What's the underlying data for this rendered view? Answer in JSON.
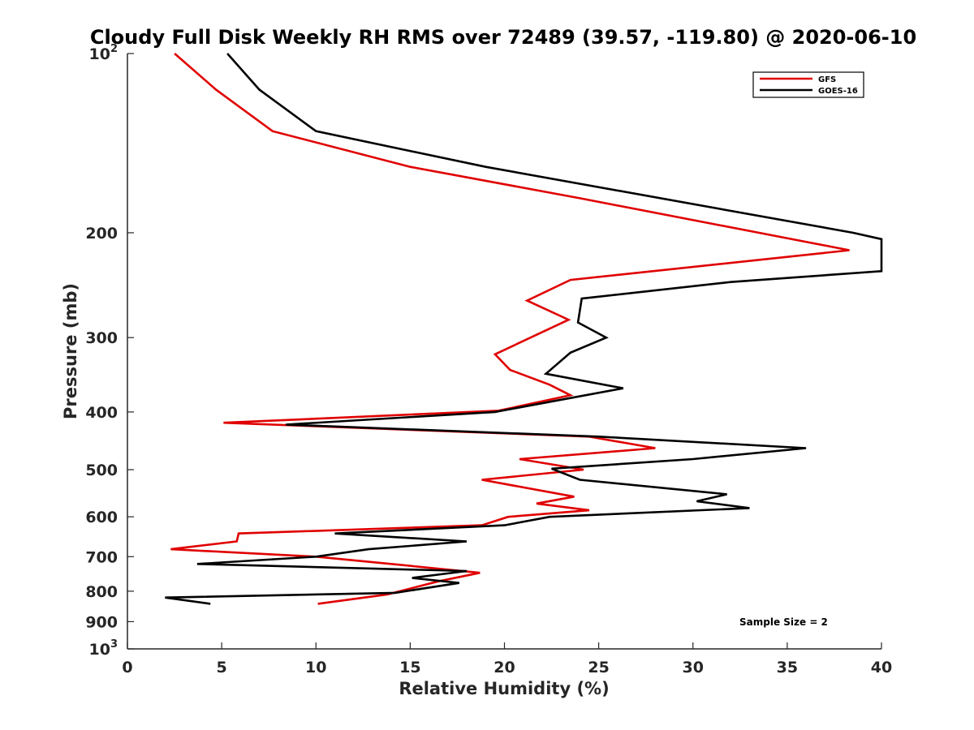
{
  "chart_data": {
    "type": "line",
    "title": "Cloudy Full Disk Weekly RH RMS over 72489 (39.57, -119.80) @ 2020-06-10",
    "xlabel": "Relative Humidity (%)",
    "ylabel": "Pressure (mb)",
    "xlim": [
      0,
      40
    ],
    "ylim": [
      100,
      1000
    ],
    "y_scale": "log",
    "y_reversed": true,
    "xticks": [
      0,
      5,
      10,
      15,
      20,
      25,
      30,
      35,
      40
    ],
    "xtick_labels": [
      "0",
      "5",
      "10",
      "15",
      "20",
      "25",
      "30",
      "35",
      "40"
    ],
    "yticks": [
      100,
      200,
      300,
      400,
      500,
      600,
      700,
      800,
      900,
      1000
    ],
    "ytick_labels": [
      "",
      "200",
      "300",
      "400",
      "500",
      "600",
      "700",
      "800",
      "900",
      ""
    ],
    "ytick_power_labels": [
      {
        "value": 100,
        "base": "10",
        "exp": "2"
      },
      {
        "value": 1000,
        "base": "10",
        "exp": "3"
      }
    ],
    "grid": false,
    "legend_position": "top-right",
    "annotation": "Sample Size = 2",
    "series": [
      {
        "name": "GFS",
        "color": "#e00000",
        "points": [
          [
            2.5,
            100
          ],
          [
            4.7,
            115
          ],
          [
            7.7,
            135
          ],
          [
            15,
            155
          ],
          [
            24,
            175
          ],
          [
            38.3,
            214
          ],
          [
            23.5,
            240
          ],
          [
            21.2,
            260
          ],
          [
            23.4,
            280
          ],
          [
            19.5,
            320
          ],
          [
            20.3,
            340
          ],
          [
            22.4,
            360
          ],
          [
            23.5,
            375
          ],
          [
            19.7,
            398
          ],
          [
            5.1,
            417
          ],
          [
            24.5,
            440
          ],
          [
            28,
            460
          ],
          [
            20.8,
            480
          ],
          [
            24.2,
            500
          ],
          [
            18.8,
            520
          ],
          [
            23.7,
            555
          ],
          [
            21.7,
            570
          ],
          [
            24.5,
            585
          ],
          [
            20.2,
            600
          ],
          [
            18.8,
            620
          ],
          [
            5.9,
            640
          ],
          [
            5.8,
            660
          ],
          [
            2.3,
            680
          ],
          [
            10,
            700
          ],
          [
            14,
            720
          ],
          [
            18.7,
            745
          ],
          [
            16.5,
            770
          ],
          [
            13.8,
            810
          ],
          [
            10.1,
            840
          ]
        ]
      },
      {
        "name": "GOES-16",
        "color": "#000000",
        "points": [
          [
            5.3,
            100
          ],
          [
            7,
            115
          ],
          [
            10,
            135
          ],
          [
            19,
            155
          ],
          [
            38.5,
            200
          ],
          [
            40,
            205
          ],
          [
            40,
            232
          ],
          [
            32,
            242
          ],
          [
            24.1,
            258
          ],
          [
            23.9,
            283
          ],
          [
            25.4,
            300
          ],
          [
            23.5,
            318
          ],
          [
            22.2,
            345
          ],
          [
            26.3,
            365
          ],
          [
            19.5,
            400
          ],
          [
            8.4,
            420
          ],
          [
            25,
            440
          ],
          [
            36,
            460
          ],
          [
            30,
            480
          ],
          [
            22.5,
            498
          ],
          [
            24,
            520
          ],
          [
            31.8,
            550
          ],
          [
            30.2,
            565
          ],
          [
            33,
            580
          ],
          [
            22.4,
            600
          ],
          [
            20,
            620
          ],
          [
            11,
            640
          ],
          [
            18,
            660
          ],
          [
            12.8,
            680
          ],
          [
            10,
            700
          ],
          [
            3.7,
            720
          ],
          [
            18,
            740
          ],
          [
            15.1,
            760
          ],
          [
            17.6,
            775
          ],
          [
            14.2,
            805
          ],
          [
            2,
            820
          ],
          [
            4.4,
            840
          ]
        ]
      }
    ]
  }
}
